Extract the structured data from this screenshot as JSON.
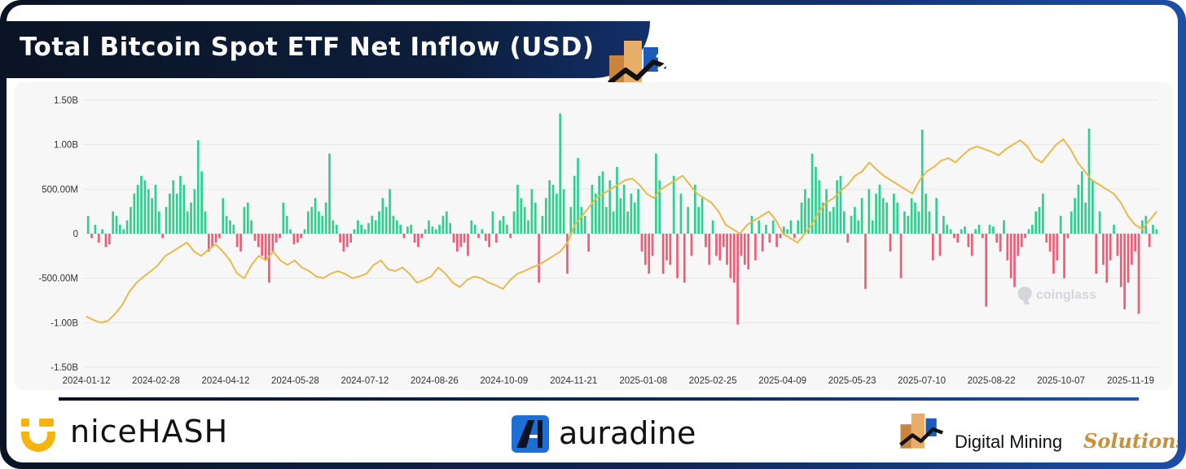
{
  "title": "Total Bitcoin Spot ETF Net Inflow (USD)",
  "watermark": "coinglass",
  "footer": {
    "logos": [
      {
        "name": "nicehash",
        "text": "niceHASH"
      },
      {
        "name": "auradine",
        "text": "auradine"
      },
      {
        "name": "digital-mining-solutions",
        "text_main": "Digital Mining",
        "text_accent": "Solutions"
      }
    ]
  },
  "colors": {
    "inflow": "#2fcf8f",
    "outflow": "#ef5c76",
    "price_line": "#e9b949",
    "frame_dark": "#0b1424",
    "frame_blue": "#1b4fa6",
    "accent_gold": "#c7913a"
  },
  "chart_data": {
    "type": "bar",
    "title": "Total Bitcoin Spot ETF Net Inflow (USD)",
    "xlabel": "",
    "ylabel": "",
    "ylim": [
      -1.5,
      1.5
    ],
    "y_unit": "B USD",
    "yticks": [
      1.5,
      1.0,
      0.5,
      0,
      -0.5,
      -1.0,
      -1.5
    ],
    "ytick_labels": [
      "1.50B",
      "1.00B",
      "500.00M",
      "0",
      "-500.00M",
      "-1.00B",
      "-1.50B"
    ],
    "x_tick_labels": [
      "2024-01-12",
      "2024-02-28",
      "2024-04-12",
      "2024-05-28",
      "2024-07-12",
      "2024-08-26",
      "2024-10-09",
      "2024-11-21",
      "2025-01-08",
      "2025-02-25",
      "2025-04-09",
      "2025-05-23",
      "2025-07-10",
      "2025-08-22",
      "2025-10-07",
      "2025-11-19"
    ],
    "grid": true,
    "legend": "none",
    "series": [
      {
        "type": "bar",
        "values": [
          0.2,
          -0.05,
          0.1,
          -0.1,
          0.05,
          -0.15,
          -0.12,
          0.25,
          0.2,
          0.1,
          0.05,
          0.15,
          0.3,
          0.45,
          0.55,
          0.65,
          0.6,
          0.5,
          0.4,
          0.55,
          0.25,
          -0.05,
          0.3,
          0.45,
          0.6,
          0.45,
          0.65,
          0.55,
          0.25,
          0.35,
          0.5,
          1.05,
          0.7,
          0.25,
          -0.2,
          -0.15,
          -0.1,
          -0.05,
          0.4,
          0.2,
          0.15,
          0.1,
          -0.15,
          -0.2,
          0.3,
          0.35,
          0.15,
          -0.08,
          -0.15,
          -0.25,
          -0.3,
          -0.55,
          -0.2,
          -0.1,
          -0.05,
          0.35,
          0.2,
          0.05,
          -0.12,
          -0.1,
          -0.05,
          0.05,
          0.25,
          0.3,
          0.4,
          0.25,
          0.2,
          0.35,
          0.9,
          0.15,
          0.1,
          -0.1,
          -0.2,
          -0.15,
          -0.1,
          0.05,
          0.15,
          0.1,
          0.05,
          0.12,
          0.2,
          0.15,
          0.25,
          0.4,
          0.3,
          0.5,
          0.2,
          0.15,
          0.1,
          -0.05,
          0.08,
          0.1,
          -0.1,
          -0.15,
          -0.05,
          0.05,
          0.15,
          0.08,
          0.05,
          0.1,
          0.2,
          0.25,
          0.12,
          -0.1,
          -0.2,
          -0.15,
          -0.1,
          -0.25,
          0.15,
          0.1,
          -0.05,
          0.05,
          -0.08,
          -0.15,
          0.25,
          -0.1,
          0.15,
          0.2,
          0.1,
          -0.05,
          0.25,
          0.55,
          0.4,
          0.3,
          0.15,
          0.5,
          0.35,
          -0.55,
          0.2,
          0.4,
          0.6,
          0.55,
          0.45,
          1.35,
          0.5,
          -0.45,
          0.3,
          0.65,
          0.85,
          0.3,
          0.2,
          -0.2,
          0.55,
          0.45,
          0.65,
          0.7,
          0.3,
          0.6,
          0.25,
          0.75,
          0.4,
          0.55,
          0.25,
          0.45,
          0.35,
          0.5,
          -0.2,
          -0.35,
          -0.45,
          -0.25,
          0.9,
          0.6,
          -0.45,
          -0.3,
          -0.35,
          0.65,
          -0.5,
          0.45,
          -0.55,
          0.3,
          -0.25,
          0.55,
          0.3,
          0.4,
          -0.15,
          -0.35,
          0.15,
          -0.25,
          -0.3,
          -0.15,
          -0.35,
          -0.5,
          -0.55,
          -1.02,
          -0.25,
          -0.35,
          -0.4,
          0.2,
          -0.3,
          0.15,
          -0.2,
          0.1,
          -0.1,
          0.15,
          -0.15,
          -0.05,
          0.08,
          0.05,
          0.15,
          -0.05,
          0.15,
          0.35,
          0.5,
          0.4,
          0.9,
          0.75,
          0.6,
          0.35,
          0.5,
          0.25,
          0.3,
          0.6,
          0.65,
          0.25,
          -0.1,
          0.2,
          0.3,
          0.15,
          0.4,
          -0.62,
          0.5,
          0.15,
          0.45,
          0.55,
          0.4,
          0.35,
          -0.2,
          0.45,
          0.35,
          -0.5,
          0.25,
          0.2,
          0.4,
          0.35,
          0.25,
          1.17,
          0.45,
          0.25,
          -0.3,
          0.4,
          -0.25,
          0.2,
          0.1,
          0.05,
          -0.05,
          -0.1,
          0.05,
          0.08,
          -0.15,
          -0.25,
          0.05,
          0.1,
          -0.05,
          -0.82,
          0.1,
          0.08,
          -0.1,
          -0.2,
          0.15,
          -0.3,
          -0.5,
          -0.6,
          -0.25,
          -0.15,
          -0.05,
          0.05,
          0.1,
          0.25,
          0.3,
          0.45,
          -0.1,
          -0.2,
          -0.45,
          -0.3,
          0.2,
          -0.5,
          -0.05,
          0.25,
          0.4,
          0.55,
          0.7,
          0.35,
          1.18,
          0.6,
          -0.45,
          0.25,
          -0.35,
          -0.55,
          -0.3,
          0.1,
          -0.25,
          -0.6,
          -0.85,
          -0.55,
          -0.35,
          -0.2,
          -0.9,
          0.15,
          0.2,
          -0.15,
          0.1,
          0.05
        ],
        "note_type": "daily net inflow, green positive / red negative"
      },
      {
        "type": "line",
        "values": [
          -0.93,
          -0.97,
          -1.0,
          -0.98,
          -0.9,
          -0.8,
          -0.65,
          -0.55,
          -0.48,
          -0.42,
          -0.35,
          -0.25,
          -0.2,
          -0.15,
          -0.1,
          -0.2,
          -0.25,
          -0.18,
          -0.12,
          -0.2,
          -0.3,
          -0.45,
          -0.5,
          -0.35,
          -0.25,
          -0.3,
          -0.2,
          -0.3,
          -0.35,
          -0.3,
          -0.38,
          -0.42,
          -0.48,
          -0.5,
          -0.45,
          -0.42,
          -0.45,
          -0.5,
          -0.48,
          -0.45,
          -0.35,
          -0.3,
          -0.4,
          -0.42,
          -0.38,
          -0.45,
          -0.55,
          -0.52,
          -0.48,
          -0.38,
          -0.45,
          -0.55,
          -0.6,
          -0.52,
          -0.48,
          -0.5,
          -0.55,
          -0.58,
          -0.62,
          -0.52,
          -0.45,
          -0.42,
          -0.38,
          -0.35,
          -0.3,
          -0.25,
          -0.2,
          -0.1,
          0.1,
          0.2,
          0.3,
          0.4,
          0.45,
          0.5,
          0.55,
          0.6,
          0.62,
          0.55,
          0.45,
          0.4,
          0.5,
          0.55,
          0.6,
          0.65,
          0.55,
          0.45,
          0.4,
          0.35,
          0.25,
          0.1,
          0.05,
          0.0,
          0.1,
          0.15,
          0.2,
          0.25,
          0.15,
          0.0,
          -0.05,
          -0.1,
          0.0,
          0.1,
          0.25,
          0.35,
          0.4,
          0.48,
          0.55,
          0.65,
          0.7,
          0.8,
          0.72,
          0.65,
          0.6,
          0.55,
          0.5,
          0.45,
          0.6,
          0.7,
          0.75,
          0.82,
          0.85,
          0.8,
          0.88,
          0.95,
          0.98,
          0.95,
          0.92,
          0.88,
          0.95,
          1.0,
          1.05,
          0.98,
          0.85,
          0.8,
          0.9,
          1.0,
          1.06,
          0.95,
          0.8,
          0.7,
          0.6,
          0.55,
          0.5,
          0.45,
          0.35,
          0.2,
          0.1,
          0.05,
          0.15,
          0.25
        ]
      }
    ]
  }
}
